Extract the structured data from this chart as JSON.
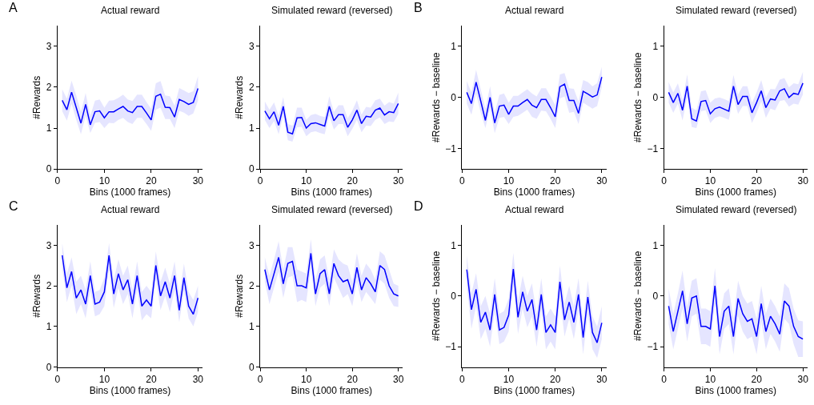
{
  "chart_data": [
    {
      "type": "line",
      "title": "Actual reward",
      "xlabel": "Bins (1000 frames)",
      "ylabel": "#Rewards",
      "annotations": [
        "A"
      ],
      "xlim": [
        0,
        31
      ],
      "xticks": [
        0,
        10,
        20,
        30
      ],
      "ylim": [
        0,
        3.5
      ],
      "yticks": [
        0,
        1,
        2,
        3
      ],
      "x": [
        1,
        2,
        3,
        4,
        5,
        6,
        7,
        8,
        9,
        10,
        11,
        12,
        13,
        14,
        15,
        16,
        17,
        18,
        19,
        20,
        21,
        22,
        23,
        24,
        25,
        26,
        27,
        28,
        29,
        30
      ],
      "series": [
        {
          "color": "#0000ff",
          "values": [
            1.68,
            1.45,
            1.88,
            1.5,
            1.12,
            1.58,
            1.08,
            1.4,
            1.42,
            1.25,
            1.4,
            1.4,
            1.47,
            1.53,
            1.42,
            1.38,
            1.53,
            1.53,
            1.37,
            1.2,
            1.78,
            1.83,
            1.51,
            1.5,
            1.27,
            1.7,
            1.65,
            1.58,
            1.63,
            1.97
          ],
          "lower": [
            1.41,
            1.18,
            1.6,
            1.2,
            0.85,
            1.3,
            0.88,
            1.13,
            1.15,
            1.0,
            1.13,
            1.12,
            1.2,
            1.25,
            1.15,
            1.1,
            1.25,
            1.25,
            1.1,
            0.93,
            1.45,
            1.5,
            1.22,
            1.22,
            1.0,
            1.42,
            1.38,
            1.3,
            1.36,
            1.67
          ],
          "upper": [
            1.95,
            1.72,
            2.16,
            1.8,
            1.4,
            1.86,
            1.3,
            1.67,
            1.7,
            1.5,
            1.67,
            1.68,
            1.74,
            1.82,
            1.7,
            1.66,
            1.82,
            1.82,
            1.64,
            1.47,
            2.1,
            2.15,
            1.8,
            1.78,
            1.55,
            1.98,
            1.92,
            1.86,
            1.9,
            2.27
          ]
        }
      ]
    },
    {
      "type": "line",
      "title": "Simulated reward (reversed)",
      "xlabel": "Bins (1000 frames)",
      "ylabel": "#Rewards",
      "xlim": [
        0,
        31
      ],
      "xticks": [
        0,
        10,
        20,
        30
      ],
      "ylim": [
        0,
        3.5
      ],
      "yticks": [
        0,
        1,
        2,
        3
      ],
      "x": [
        1,
        2,
        3,
        4,
        5,
        6,
        7,
        8,
        9,
        10,
        11,
        12,
        13,
        14,
        15,
        16,
        17,
        18,
        19,
        20,
        21,
        22,
        23,
        24,
        25,
        26,
        27,
        28,
        29,
        30
      ],
      "series": [
        {
          "color": "#0000ff",
          "values": [
            1.42,
            1.23,
            1.4,
            1.07,
            1.53,
            0.9,
            0.86,
            1.25,
            1.26,
            1.0,
            1.11,
            1.13,
            1.09,
            1.05,
            1.53,
            1.18,
            1.33,
            1.33,
            1.02,
            1.2,
            1.44,
            1.11,
            1.29,
            1.27,
            1.44,
            1.49,
            1.32,
            1.4,
            1.38,
            1.6
          ],
          "lower": [
            1.2,
            1.0,
            1.17,
            0.85,
            1.3,
            0.7,
            0.67,
            1.02,
            1.03,
            0.8,
            0.9,
            0.92,
            0.88,
            0.85,
            1.3,
            0.96,
            1.1,
            1.1,
            0.8,
            0.98,
            1.2,
            0.9,
            1.06,
            1.05,
            1.2,
            1.26,
            1.1,
            1.16,
            1.15,
            1.35
          ],
          "upper": [
            1.65,
            1.45,
            1.63,
            1.3,
            1.76,
            1.1,
            1.06,
            1.5,
            1.5,
            1.2,
            1.32,
            1.35,
            1.3,
            1.27,
            1.78,
            1.4,
            1.56,
            1.56,
            1.24,
            1.43,
            1.68,
            1.33,
            1.52,
            1.5,
            1.68,
            1.72,
            1.55,
            1.64,
            1.6,
            1.87
          ]
        }
      ]
    },
    {
      "type": "line",
      "title": "Actual reward",
      "xlabel": "Bins (1000 frames)",
      "ylabel": "#Rewards − baseline",
      "annotations": [
        "B"
      ],
      "xlim": [
        0,
        31
      ],
      "xticks": [
        0,
        10,
        20,
        30
      ],
      "ylim": [
        -1.4,
        1.4
      ],
      "yticks": [
        -1,
        0,
        1
      ],
      "x": [
        1,
        2,
        3,
        4,
        5,
        6,
        7,
        8,
        9,
        10,
        11,
        12,
        13,
        14,
        15,
        16,
        17,
        18,
        19,
        20,
        21,
        22,
        23,
        24,
        25,
        26,
        27,
        28,
        29,
        30
      ],
      "series": [
        {
          "color": "#0000ff",
          "values": [
            0.1,
            -0.12,
            0.3,
            -0.07,
            -0.45,
            0.0,
            -0.5,
            -0.17,
            -0.15,
            -0.33,
            -0.17,
            -0.17,
            -0.1,
            -0.04,
            -0.15,
            -0.2,
            -0.04,
            -0.04,
            -0.2,
            -0.38,
            0.21,
            0.26,
            -0.06,
            -0.06,
            -0.31,
            0.12,
            0.07,
            0.01,
            0.05,
            0.4
          ],
          "lower": [
            -0.12,
            -0.34,
            0.07,
            -0.3,
            -0.6,
            -0.22,
            -0.7,
            -0.4,
            -0.38,
            -0.52,
            -0.38,
            -0.36,
            -0.3,
            -0.24,
            -0.38,
            -0.42,
            -0.26,
            -0.27,
            -0.42,
            -0.6,
            -0.02,
            0.02,
            -0.3,
            -0.28,
            -0.52,
            -0.1,
            -0.16,
            -0.22,
            -0.17,
            0.2
          ],
          "upper": [
            0.32,
            0.1,
            0.54,
            0.16,
            -0.22,
            0.22,
            -0.3,
            0.05,
            0.08,
            -0.1,
            0.03,
            0.03,
            0.1,
            0.16,
            0.08,
            0.02,
            0.18,
            0.18,
            0.02,
            -0.15,
            0.45,
            0.48,
            0.18,
            0.17,
            -0.08,
            0.34,
            0.3,
            0.22,
            0.28,
            0.6
          ]
        }
      ]
    },
    {
      "type": "line",
      "title": "Simulated reward (reversed)",
      "xlabel": "Bins (1000 frames)",
      "ylabel": "#Rewards − baseline",
      "xlim": [
        0,
        31
      ],
      "xticks": [
        0,
        10,
        20,
        30
      ],
      "ylim": [
        -1.4,
        1.4
      ],
      "yticks": [
        -1,
        0,
        1
      ],
      "x": [
        1,
        2,
        3,
        4,
        5,
        6,
        7,
        8,
        9,
        10,
        11,
        12,
        13,
        14,
        15,
        16,
        17,
        18,
        19,
        20,
        21,
        22,
        23,
        24,
        25,
        26,
        27,
        28,
        29,
        30
      ],
      "series": [
        {
          "color": "#0000ff",
          "values": [
            0.1,
            -0.1,
            0.08,
            -0.25,
            0.22,
            -0.42,
            -0.46,
            -0.08,
            -0.06,
            -0.32,
            -0.22,
            -0.19,
            -0.23,
            -0.27,
            0.22,
            -0.14,
            0.02,
            0.02,
            -0.3,
            -0.1,
            0.13,
            -0.2,
            -0.03,
            -0.05,
            0.13,
            0.17,
            0.0,
            0.08,
            0.06,
            0.28
          ],
          "lower": [
            -0.1,
            -0.3,
            -0.12,
            -0.45,
            0.0,
            -0.58,
            -0.6,
            -0.27,
            -0.25,
            -0.5,
            -0.4,
            -0.37,
            -0.4,
            -0.44,
            0.0,
            -0.32,
            -0.17,
            -0.17,
            -0.5,
            -0.3,
            -0.08,
            -0.4,
            -0.22,
            -0.25,
            -0.07,
            -0.05,
            -0.18,
            -0.12,
            -0.14,
            0.06
          ],
          "upper": [
            0.3,
            0.1,
            0.28,
            -0.05,
            0.45,
            -0.2,
            -0.25,
            0.12,
            0.14,
            -0.1,
            -0.02,
            0.0,
            -0.03,
            -0.07,
            0.44,
            0.06,
            0.22,
            0.22,
            -0.1,
            0.1,
            0.34,
            0.0,
            0.17,
            0.16,
            0.35,
            0.38,
            0.2,
            0.28,
            0.26,
            0.5
          ]
        }
      ]
    },
    {
      "type": "line",
      "title": "Actual reward",
      "xlabel": "Bins (1000 frames)",
      "ylabel": "#Rewards",
      "annotations": [
        "C"
      ],
      "xlim": [
        0,
        31
      ],
      "xticks": [
        0,
        10,
        20,
        30
      ],
      "ylim": [
        0,
        3.5
      ],
      "yticks": [
        0,
        1,
        2,
        3
      ],
      "x": [
        1,
        2,
        3,
        4,
        5,
        6,
        7,
        8,
        9,
        10,
        11,
        12,
        13,
        14,
        15,
        16,
        17,
        18,
        19,
        20,
        21,
        22,
        23,
        24,
        25,
        26,
        27,
        28,
        29,
        30
      ],
      "series": [
        {
          "color": "#0000ff",
          "values": [
            2.75,
            1.95,
            2.35,
            1.7,
            1.9,
            1.55,
            2.25,
            1.55,
            1.6,
            1.85,
            2.75,
            1.8,
            2.3,
            1.9,
            2.15,
            1.55,
            2.25,
            1.5,
            1.65,
            1.5,
            2.5,
            1.75,
            2.1,
            1.7,
            2.25,
            1.4,
            2.2,
            1.5,
            1.3,
            1.7
          ],
          "lower": [
            2.45,
            1.6,
            2.0,
            1.3,
            1.55,
            1.2,
            1.9,
            1.25,
            1.3,
            1.5,
            2.4,
            1.45,
            1.95,
            1.55,
            1.8,
            1.2,
            1.9,
            1.15,
            1.3,
            1.2,
            2.15,
            1.4,
            1.75,
            1.35,
            1.9,
            1.1,
            1.85,
            1.2,
            1.0,
            1.35
          ],
          "upper": [
            3.05,
            2.3,
            2.7,
            2.1,
            2.25,
            1.9,
            2.6,
            1.85,
            1.9,
            2.2,
            3.05,
            2.15,
            2.65,
            2.25,
            2.5,
            1.9,
            2.6,
            1.85,
            2.0,
            1.85,
            2.85,
            2.1,
            2.45,
            2.05,
            2.6,
            1.75,
            2.55,
            1.85,
            1.65,
            2.0
          ]
        }
      ]
    },
    {
      "type": "line",
      "title": "Simulated reward (reversed)",
      "xlabel": "Bins (1000 frames)",
      "ylabel": "#Rewards",
      "xlim": [
        0,
        31
      ],
      "xticks": [
        0,
        10,
        20,
        30
      ],
      "ylim": [
        0,
        3.5
      ],
      "yticks": [
        0,
        1,
        2,
        3
      ],
      "x": [
        1,
        2,
        3,
        4,
        5,
        6,
        7,
        8,
        9,
        10,
        11,
        12,
        13,
        14,
        15,
        16,
        17,
        18,
        19,
        20,
        21,
        22,
        23,
        24,
        25,
        26,
        27,
        28,
        29,
        30
      ],
      "series": [
        {
          "color": "#0000ff",
          "values": [
            2.4,
            1.9,
            2.3,
            2.7,
            2.05,
            2.55,
            2.6,
            2.0,
            2.0,
            1.95,
            2.8,
            1.8,
            2.3,
            2.4,
            1.8,
            2.55,
            2.25,
            2.1,
            2.15,
            1.8,
            2.45,
            1.9,
            2.2,
            2.05,
            1.85,
            2.5,
            2.4,
            2.0,
            1.8,
            1.75
          ],
          "lower": [
            2.1,
            1.55,
            1.95,
            2.35,
            1.7,
            2.2,
            2.25,
            1.6,
            1.65,
            1.6,
            2.45,
            1.5,
            1.95,
            2.05,
            1.5,
            2.2,
            1.95,
            1.7,
            1.8,
            1.5,
            2.1,
            1.6,
            1.85,
            1.7,
            1.55,
            2.15,
            2.05,
            1.7,
            1.5,
            1.48
          ],
          "upper": [
            2.7,
            2.25,
            2.65,
            3.1,
            2.4,
            2.95,
            2.95,
            2.4,
            2.35,
            2.3,
            3.15,
            2.15,
            2.65,
            2.75,
            2.15,
            2.9,
            2.65,
            2.55,
            2.5,
            2.1,
            2.8,
            2.25,
            2.55,
            2.4,
            2.15,
            2.85,
            2.75,
            2.4,
            2.05,
            2.0
          ]
        }
      ]
    },
    {
      "type": "line",
      "title": "Actual reward",
      "xlabel": "Bins (1000 frames)",
      "ylabel": "#Rewards − baseline",
      "annotations": [
        "D"
      ],
      "xlim": [
        0,
        31
      ],
      "xticks": [
        0,
        10,
        20,
        30
      ],
      "ylim": [
        -1.4,
        1.4
      ],
      "yticks": [
        -1,
        0,
        1
      ],
      "x": [
        1,
        2,
        3,
        4,
        5,
        6,
        7,
        8,
        9,
        10,
        11,
        12,
        13,
        14,
        15,
        16,
        17,
        18,
        19,
        20,
        21,
        22,
        23,
        24,
        25,
        26,
        27,
        28,
        29,
        30
      ],
      "series": [
        {
          "color": "#0000ff",
          "values": [
            0.52,
            -0.27,
            0.13,
            -0.52,
            -0.32,
            -0.67,
            0.03,
            -0.67,
            -0.62,
            -0.38,
            0.53,
            -0.42,
            0.08,
            -0.3,
            -0.07,
            -0.67,
            0.03,
            -0.72,
            -0.57,
            -0.72,
            0.28,
            -0.47,
            -0.12,
            -0.52,
            0.03,
            -0.82,
            -0.02,
            -0.72,
            -0.92,
            -0.53
          ],
          "lower": [
            0.2,
            -0.65,
            -0.2,
            -0.85,
            -0.65,
            -1.0,
            -0.3,
            -0.95,
            -0.9,
            -0.7,
            0.2,
            -0.75,
            -0.25,
            -0.62,
            -0.4,
            -1.0,
            -0.3,
            -1.05,
            -0.9,
            -1.05,
            -0.05,
            -0.8,
            -0.45,
            -0.85,
            -0.3,
            -1.15,
            -0.35,
            -1.05,
            -1.22,
            -0.85
          ],
          "upper": [
            0.8,
            0.05,
            0.45,
            -0.2,
            0.0,
            -0.35,
            0.35,
            -0.35,
            -0.3,
            -0.05,
            0.85,
            -0.1,
            0.4,
            0.0,
            0.25,
            -0.35,
            0.35,
            -0.4,
            -0.25,
            -0.4,
            0.6,
            -0.15,
            0.2,
            -0.2,
            0.35,
            -0.5,
            0.3,
            -0.4,
            -0.6,
            -0.2
          ]
        }
      ]
    },
    {
      "type": "line",
      "title": "Simulated reward (reversed)",
      "xlabel": "Bins (1000 frames)",
      "ylabel": "#Rewards − baseline",
      "xlim": [
        0,
        31
      ],
      "xticks": [
        0,
        10,
        20,
        30
      ],
      "ylim": [
        -1.4,
        1.4
      ],
      "yticks": [
        -1,
        0,
        1
      ],
      "x": [
        1,
        2,
        3,
        4,
        5,
        6,
        7,
        8,
        9,
        10,
        11,
        12,
        13,
        14,
        15,
        16,
        17,
        18,
        19,
        20,
        21,
        22,
        23,
        24,
        25,
        26,
        27,
        28,
        29,
        30
      ],
      "series": [
        {
          "color": "#0000ff",
          "values": [
            -0.2,
            -0.7,
            -0.3,
            0.1,
            -0.55,
            -0.04,
            0.0,
            -0.6,
            -0.6,
            -0.65,
            0.2,
            -0.8,
            -0.3,
            -0.2,
            -0.8,
            -0.05,
            -0.35,
            -0.5,
            -0.45,
            -0.8,
            -0.15,
            -0.7,
            -0.4,
            -0.55,
            -0.75,
            -0.1,
            -0.2,
            -0.6,
            -0.8,
            -0.85
          ],
          "lower": [
            -0.55,
            -1.05,
            -0.65,
            -0.25,
            -0.9,
            -0.4,
            -0.35,
            -0.95,
            -0.95,
            -1.0,
            -0.15,
            -1.15,
            -0.65,
            -0.55,
            -1.15,
            -0.4,
            -0.7,
            -0.85,
            -0.8,
            -1.15,
            -0.5,
            -1.05,
            -0.75,
            -0.9,
            -1.1,
            -0.45,
            -0.55,
            -0.95,
            -1.2,
            -1.2
          ],
          "upper": [
            0.15,
            -0.35,
            0.05,
            0.5,
            -0.2,
            0.3,
            0.35,
            -0.25,
            -0.25,
            -0.3,
            0.55,
            -0.45,
            0.05,
            0.15,
            -0.45,
            0.3,
            0.0,
            -0.15,
            -0.1,
            -0.45,
            0.2,
            -0.35,
            -0.05,
            -0.2,
            -0.4,
            0.25,
            0.15,
            -0.25,
            -0.48,
            -0.5
          ]
        }
      ]
    }
  ]
}
